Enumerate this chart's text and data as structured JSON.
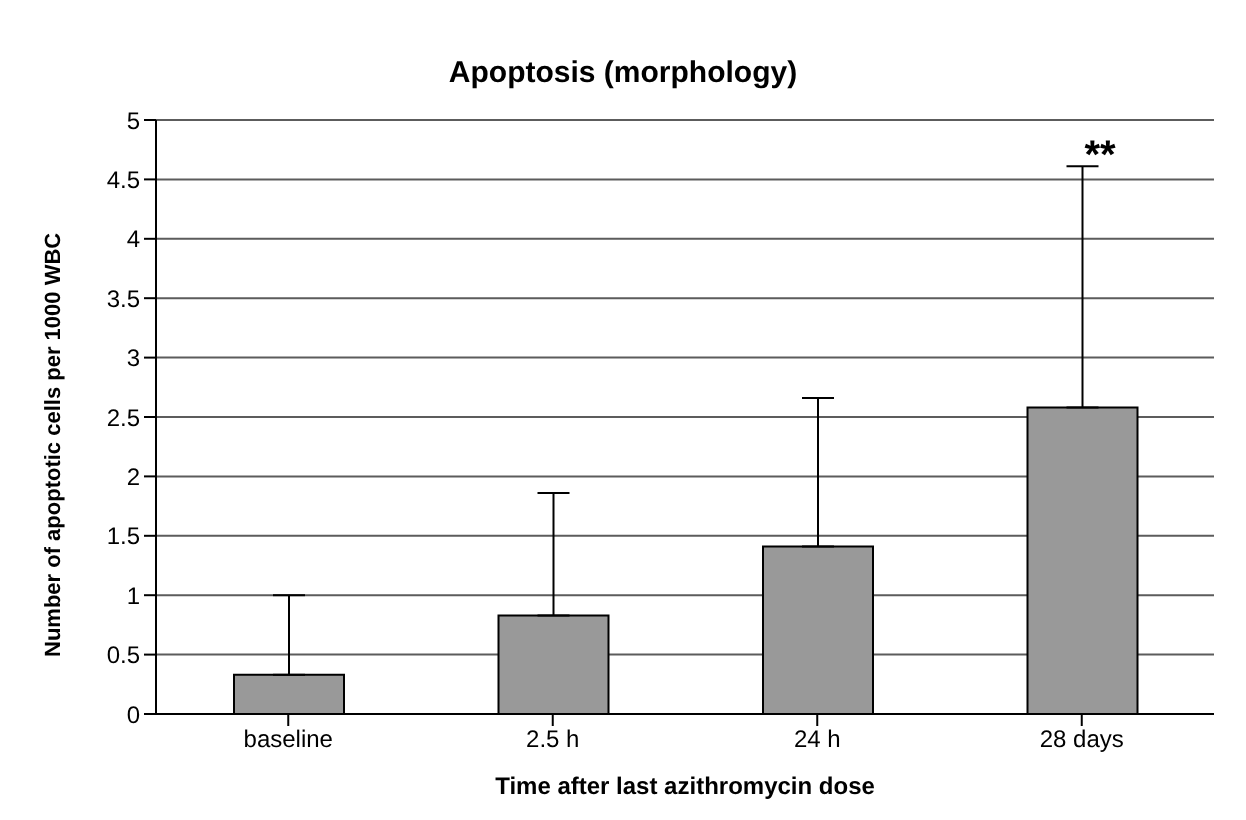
{
  "chart_data": {
    "type": "bar",
    "title": "Apoptosis (morphology)",
    "xlabel": "Time after last azithromycin dose",
    "ylabel": "Number of apoptotic cells per 1000 WBC",
    "categories": [
      "baseline",
      "2.5 h",
      "24 h",
      "28 days"
    ],
    "values": [
      0.33,
      0.83,
      1.41,
      2.58
    ],
    "errors": [
      [
        0.33,
        1.0
      ],
      [
        0.83,
        1.86
      ],
      [
        1.41,
        2.66
      ],
      [
        2.58,
        4.61
      ]
    ],
    "color": "#999999",
    "ylim": [
      0,
      5
    ],
    "yticks": [
      0,
      0.5,
      1,
      1.5,
      2,
      2.5,
      3,
      3.5,
      4,
      4.5,
      5
    ],
    "grid": "y",
    "annotations": [
      "**"
    ]
  }
}
